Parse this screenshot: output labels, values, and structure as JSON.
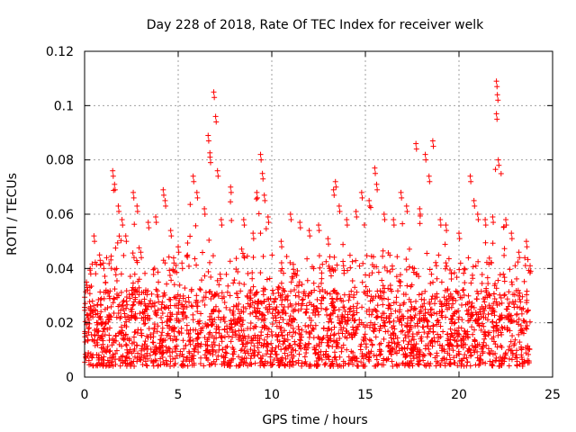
{
  "chart_data": {
    "type": "scatter",
    "title": "Day 228 of 2018, Rate Of TEC Index for receiver welk",
    "xlabel": "GPS time / hours",
    "ylabel": "ROTI / TECUs",
    "xlim": [
      0,
      25
    ],
    "ylim": [
      0,
      0.12
    ],
    "xticks": [
      0,
      5,
      10,
      15,
      20,
      25
    ],
    "xtick_labels": [
      "0",
      "5",
      "10",
      "15",
      "20",
      "25"
    ],
    "yticks": [
      0,
      0.02,
      0.04,
      0.06,
      0.08,
      0.1,
      0.12
    ],
    "ytick_labels": [
      "0",
      "0.02",
      "0.04",
      "0.06",
      "0.08",
      "0.1",
      "0.12"
    ],
    "grid": true,
    "marker": "+",
    "marker_color": "#ff0000",
    "data_extent_x": [
      0,
      23.8
    ],
    "series": [
      {
        "name": "ROTI",
        "note": "dense cloud of points, baseline about 0.005-0.03 TECU, representative peaks listed",
        "points": [
          [
            0.1,
            0.035
          ],
          [
            0.3,
            0.04
          ],
          [
            0.5,
            0.052
          ],
          [
            0.8,
            0.045
          ],
          [
            1.0,
            0.042
          ],
          [
            1.5,
            0.076
          ],
          [
            1.6,
            0.071
          ],
          [
            1.8,
            0.063
          ],
          [
            2.0,
            0.058
          ],
          [
            2.2,
            0.052
          ],
          [
            2.6,
            0.068
          ],
          [
            2.8,
            0.063
          ],
          [
            3.0,
            0.046
          ],
          [
            3.4,
            0.057
          ],
          [
            3.8,
            0.059
          ],
          [
            4.2,
            0.069
          ],
          [
            4.3,
            0.065
          ],
          [
            4.6,
            0.054
          ],
          [
            5.0,
            0.048
          ],
          [
            5.2,
            0.042
          ],
          [
            5.8,
            0.074
          ],
          [
            6.0,
            0.068
          ],
          [
            6.4,
            0.062
          ],
          [
            6.6,
            0.089
          ],
          [
            6.7,
            0.081
          ],
          [
            6.9,
            0.105
          ],
          [
            7.0,
            0.096
          ],
          [
            7.1,
            0.076
          ],
          [
            7.3,
            0.058
          ],
          [
            7.8,
            0.07
          ],
          [
            8.5,
            0.058
          ],
          [
            9.0,
            0.053
          ],
          [
            9.2,
            0.068
          ],
          [
            9.4,
            0.082
          ],
          [
            9.5,
            0.075
          ],
          [
            9.6,
            0.067
          ],
          [
            9.8,
            0.059
          ],
          [
            10.5,
            0.05
          ],
          [
            11.0,
            0.06
          ],
          [
            11.5,
            0.057
          ],
          [
            12.0,
            0.054
          ],
          [
            12.5,
            0.056
          ],
          [
            13.0,
            0.051
          ],
          [
            13.3,
            0.069
          ],
          [
            13.4,
            0.072
          ],
          [
            13.6,
            0.063
          ],
          [
            14.0,
            0.058
          ],
          [
            14.5,
            0.061
          ],
          [
            14.8,
            0.068
          ],
          [
            15.2,
            0.065
          ],
          [
            15.5,
            0.077
          ],
          [
            15.6,
            0.071
          ],
          [
            16.0,
            0.06
          ],
          [
            16.5,
            0.058
          ],
          [
            16.9,
            0.068
          ],
          [
            17.2,
            0.063
          ],
          [
            17.7,
            0.086
          ],
          [
            17.9,
            0.062
          ],
          [
            18.2,
            0.082
          ],
          [
            18.4,
            0.074
          ],
          [
            18.6,
            0.087
          ],
          [
            19.0,
            0.058
          ],
          [
            19.3,
            0.056
          ],
          [
            20.0,
            0.053
          ],
          [
            20.6,
            0.074
          ],
          [
            20.8,
            0.065
          ],
          [
            21.0,
            0.06
          ],
          [
            21.4,
            0.058
          ],
          [
            21.8,
            0.059
          ],
          [
            22.0,
            0.109
          ],
          [
            22.05,
            0.104
          ],
          [
            22.0,
            0.097
          ],
          [
            22.1,
            0.08
          ],
          [
            22.5,
            0.058
          ],
          [
            22.8,
            0.053
          ],
          [
            23.2,
            0.046
          ],
          [
            23.6,
            0.05
          ],
          [
            23.8,
            0.041
          ]
        ]
      }
    ]
  }
}
